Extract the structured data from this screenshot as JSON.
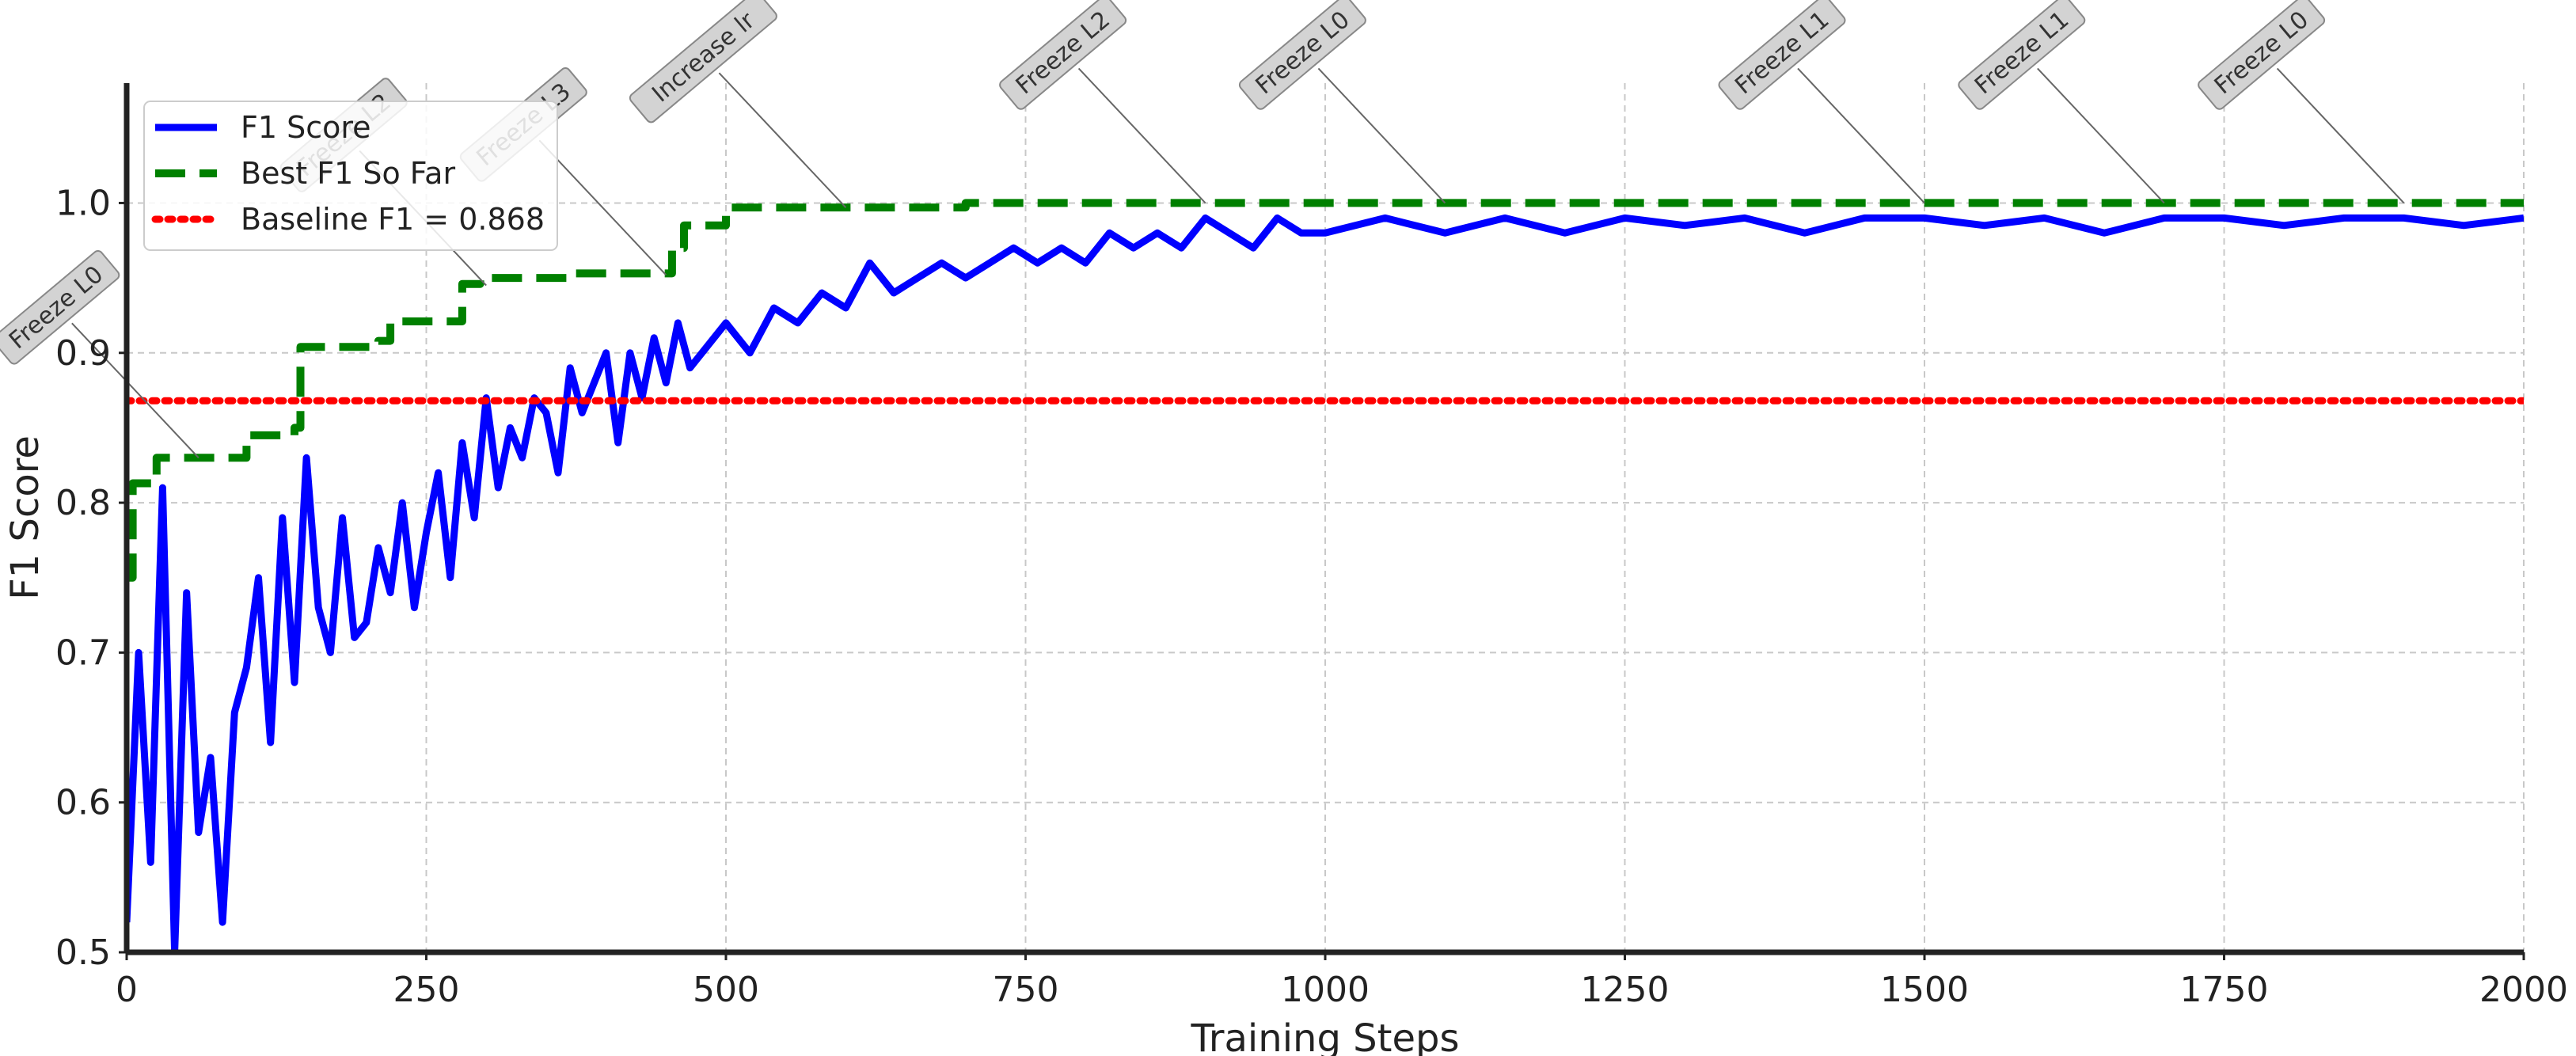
{
  "chart_data": {
    "type": "line",
    "xlabel": "Training Steps",
    "ylabel": "F1 Score",
    "xlim": [
      0,
      2000
    ],
    "ylim": [
      0.5,
      1.08
    ],
    "xticks": [
      0,
      250,
      500,
      750,
      1000,
      1250,
      1500,
      1750,
      2000
    ],
    "yticks": [
      0.5,
      0.6,
      0.7,
      0.8,
      0.9,
      1.0
    ],
    "ytick_labels": [
      "0.5",
      "0.6",
      "0.7",
      "0.8",
      "0.9",
      "1.0"
    ],
    "grid": true,
    "legend_position": "top-left",
    "series": [
      {
        "name": "F1 Score",
        "style": "solid",
        "color": "#0000ff",
        "x": [
          0,
          10,
          20,
          30,
          40,
          50,
          60,
          70,
          80,
          90,
          100,
          110,
          120,
          130,
          140,
          150,
          160,
          170,
          180,
          190,
          200,
          210,
          220,
          230,
          240,
          250,
          260,
          270,
          280,
          290,
          300,
          310,
          320,
          330,
          340,
          350,
          360,
          370,
          380,
          390,
          400,
          410,
          420,
          430,
          440,
          450,
          460,
          470,
          480,
          490,
          500,
          520,
          540,
          560,
          580,
          600,
          620,
          640,
          660,
          680,
          700,
          720,
          740,
          760,
          780,
          800,
          820,
          840,
          860,
          880,
          900,
          920,
          940,
          960,
          980,
          1000,
          1050,
          1100,
          1150,
          1200,
          1250,
          1300,
          1350,
          1400,
          1450,
          1500,
          1550,
          1600,
          1650,
          1700,
          1750,
          1800,
          1850,
          1900,
          1950,
          2000
        ],
        "values": [
          0.52,
          0.7,
          0.56,
          0.81,
          0.5,
          0.74,
          0.58,
          0.63,
          0.52,
          0.66,
          0.69,
          0.75,
          0.64,
          0.79,
          0.68,
          0.83,
          0.73,
          0.7,
          0.79,
          0.71,
          0.72,
          0.77,
          0.74,
          0.8,
          0.73,
          0.78,
          0.82,
          0.75,
          0.84,
          0.79,
          0.87,
          0.81,
          0.85,
          0.83,
          0.87,
          0.86,
          0.82,
          0.89,
          0.86,
          0.88,
          0.9,
          0.84,
          0.9,
          0.87,
          0.91,
          0.88,
          0.92,
          0.89,
          0.9,
          0.91,
          0.92,
          0.9,
          0.93,
          0.92,
          0.94,
          0.93,
          0.96,
          0.94,
          0.95,
          0.96,
          0.95,
          0.96,
          0.97,
          0.96,
          0.97,
          0.96,
          0.98,
          0.97,
          0.98,
          0.97,
          0.99,
          0.98,
          0.97,
          0.99,
          0.98,
          0.98,
          0.99,
          0.98,
          0.99,
          0.98,
          0.99,
          0.985,
          0.99,
          0.98,
          0.99,
          0.99,
          0.985,
          0.99,
          0.98,
          0.99,
          0.99,
          0.985,
          0.99,
          0.99,
          0.985,
          0.99
        ]
      },
      {
        "name": "Best F1 So Far",
        "style": "dashed",
        "color": "#008000",
        "x": [
          0,
          5,
          5,
          25,
          25,
          100,
          100,
          140,
          140,
          145,
          145,
          210,
          210,
          220,
          220,
          280,
          280,
          295,
          295,
          370,
          370,
          455,
          455,
          465,
          465,
          500,
          500,
          700,
          700,
          2000
        ],
        "values": [
          0.75,
          0.75,
          0.813,
          0.813,
          0.83,
          0.83,
          0.845,
          0.845,
          0.85,
          0.85,
          0.904,
          0.904,
          0.908,
          0.908,
          0.921,
          0.921,
          0.946,
          0.946,
          0.95,
          0.95,
          0.953,
          0.953,
          0.97,
          0.97,
          0.985,
          0.985,
          0.997,
          0.997,
          1.0,
          1.0
        ]
      },
      {
        "name": "Baseline F1 = 0.868",
        "style": "dotted",
        "color": "#ff0000",
        "x": [
          0,
          2000
        ],
        "values": [
          0.868,
          0.868
        ]
      }
    ],
    "annotations": [
      {
        "text": "Freeze L0",
        "x": 60,
        "y": 0.83
      },
      {
        "text": "Freeze L2",
        "x": 300,
        "y": 0.945
      },
      {
        "text": "Freeze L3",
        "x": 450,
        "y": 0.952
      },
      {
        "text": "Increase lr",
        "x": 600,
        "y": 0.997
      },
      {
        "text": "Freeze L2",
        "x": 900,
        "y": 1.0
      },
      {
        "text": "Freeze L0",
        "x": 1100,
        "y": 1.0
      },
      {
        "text": "Freeze L1",
        "x": 1500,
        "y": 1.0
      },
      {
        "text": "Freeze L1",
        "x": 1700,
        "y": 1.0
      },
      {
        "text": "Freeze L0",
        "x": 1900,
        "y": 1.0
      }
    ]
  }
}
